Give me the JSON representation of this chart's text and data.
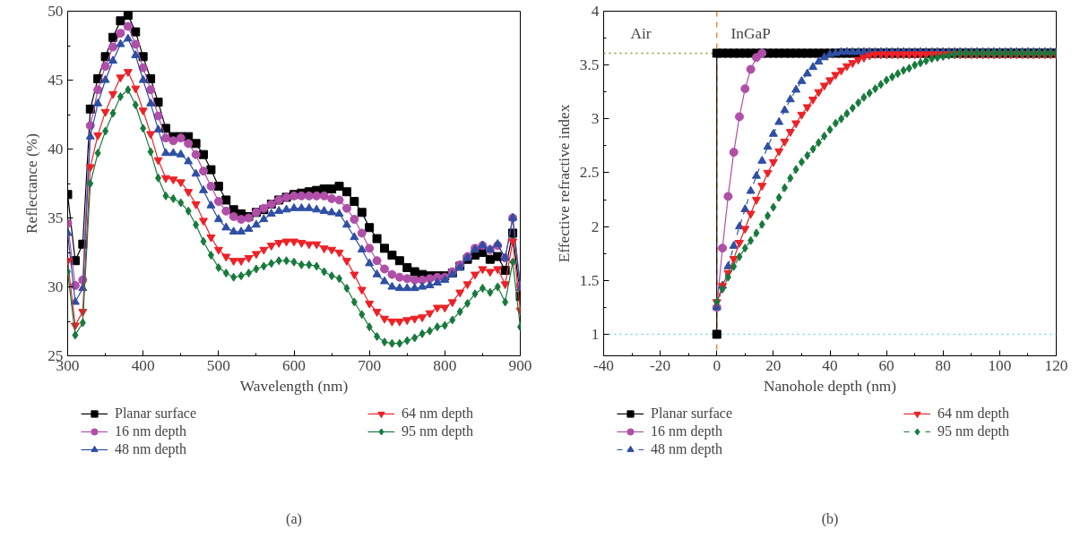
{
  "chart_data": [
    {
      "type": "line",
      "xlabel": "Wavelength (nm)",
      "ylabel": "Reflectance (%)",
      "xlim": [
        300,
        900
      ],
      "ylim": [
        25,
        50
      ],
      "xticks": [
        300,
        400,
        500,
        600,
        700,
        800,
        900
      ],
      "yticks": [
        25,
        30,
        35,
        40,
        45,
        50
      ],
      "grid": false,
      "legend": "bottom",
      "annotations": [
        "(a)"
      ],
      "x": [
        300,
        310,
        320,
        330,
        340,
        350,
        360,
        370,
        380,
        390,
        400,
        410,
        420,
        430,
        440,
        450,
        460,
        470,
        480,
        490,
        500,
        510,
        520,
        530,
        540,
        550,
        560,
        570,
        580,
        590,
        600,
        610,
        620,
        630,
        640,
        650,
        660,
        670,
        680,
        690,
        700,
        710,
        720,
        730,
        740,
        750,
        760,
        770,
        780,
        790,
        800,
        810,
        820,
        830,
        840,
        850,
        860,
        870,
        880,
        890,
        900
      ],
      "series": [
        {
          "name": "Planar surface",
          "color": "#000000",
          "marker": "square",
          "line_style": "solid",
          "values": [
            36.7,
            31.9,
            33.1,
            42.9,
            45.1,
            46.7,
            48.1,
            49.3,
            49.7,
            48.5,
            46.7,
            45.1,
            43.4,
            41.5,
            40.9,
            40.9,
            40.9,
            40.4,
            39.6,
            38.5,
            37.3,
            36.3,
            35.6,
            35.3,
            35.1,
            35.4,
            35.6,
            36.0,
            36.3,
            36.5,
            36.7,
            36.8,
            36.9,
            37.0,
            37.1,
            37.1,
            37.3,
            36.9,
            36.2,
            35.4,
            34.3,
            33.5,
            32.8,
            32.3,
            31.9,
            31.4,
            31.1,
            30.9,
            30.8,
            30.8,
            30.8,
            31.0,
            31.5,
            32.0,
            32.3,
            32.5,
            32.0,
            32.2,
            31.2,
            33.9,
            29.3
          ]
        },
        {
          "name": "16 nm depth",
          "color": "#b04fa8",
          "marker": "circle",
          "line_style": "solid",
          "values": [
            34.6,
            30.1,
            30.5,
            41.7,
            44.3,
            46.0,
            47.4,
            48.4,
            48.9,
            47.6,
            45.9,
            44.3,
            42.4,
            40.8,
            40.6,
            40.8,
            40.4,
            39.6,
            38.4,
            37.3,
            36.2,
            35.5,
            35.1,
            34.9,
            35.0,
            35.4,
            35.7,
            36.0,
            36.3,
            36.5,
            36.6,
            36.6,
            36.6,
            36.6,
            36.6,
            36.4,
            36.3,
            35.7,
            34.9,
            33.9,
            32.8,
            31.9,
            31.3,
            30.9,
            30.7,
            30.6,
            30.5,
            30.5,
            30.6,
            30.7,
            30.7,
            31.1,
            31.6,
            32.2,
            32.8,
            33.0,
            32.7,
            33.0,
            32.1,
            35.0,
            30.1
          ]
        },
        {
          "name": "48 nm depth",
          "color": "#2e4fa3",
          "marker": "triangle",
          "line_style": "solid",
          "values": [
            33.9,
            28.9,
            29.9,
            40.9,
            43.3,
            45.0,
            46.4,
            47.6,
            48.0,
            46.8,
            45.0,
            43.3,
            41.4,
            39.7,
            39.7,
            39.6,
            39.1,
            38.2,
            37.0,
            35.9,
            34.9,
            34.3,
            34.0,
            34.0,
            34.2,
            34.5,
            34.9,
            35.3,
            35.5,
            35.6,
            35.7,
            35.7,
            35.7,
            35.6,
            35.5,
            35.4,
            35.3,
            34.5,
            33.6,
            32.7,
            31.7,
            30.9,
            30.4,
            30.0,
            29.9,
            29.9,
            29.9,
            30.0,
            30.1,
            30.3,
            30.5,
            30.9,
            31.4,
            32.1,
            32.7,
            33.0,
            32.7,
            33.1,
            32.1,
            35.0,
            29.9
          ]
        },
        {
          "name": "64 nm depth",
          "color": "#ec2227",
          "marker": "triangle",
          "line_style": "solid",
          "values": [
            31.9,
            27.2,
            28.2,
            38.7,
            41.0,
            42.7,
            44.0,
            45.2,
            45.6,
            44.4,
            42.8,
            41.1,
            39.2,
            37.9,
            37.8,
            37.6,
            36.9,
            36.0,
            34.8,
            33.6,
            32.7,
            32.2,
            31.9,
            31.9,
            32.1,
            32.4,
            32.7,
            33.0,
            33.2,
            33.3,
            33.3,
            33.2,
            33.1,
            33.1,
            32.8,
            32.7,
            32.5,
            31.9,
            30.9,
            29.8,
            28.8,
            28.2,
            27.7,
            27.5,
            27.5,
            27.6,
            27.7,
            27.8,
            28.1,
            28.5,
            28.5,
            28.9,
            29.6,
            30.2,
            30.9,
            31.3,
            31.1,
            31.3,
            30.2,
            33.3,
            28.3
          ]
        },
        {
          "name": "95 nm depth",
          "color": "#177a3c",
          "marker": "diamond",
          "line_style": "solid",
          "values": [
            31.1,
            26.5,
            27.4,
            37.5,
            39.7,
            41.3,
            42.6,
            43.8,
            44.3,
            43.2,
            41.5,
            39.8,
            37.9,
            36.6,
            36.4,
            36.1,
            35.5,
            34.5,
            33.3,
            32.3,
            31.4,
            31.0,
            30.7,
            30.8,
            31.0,
            31.3,
            31.5,
            31.7,
            31.9,
            31.9,
            31.8,
            31.6,
            31.6,
            31.5,
            31.1,
            30.8,
            30.6,
            29.9,
            28.9,
            28.0,
            27.1,
            26.4,
            26.0,
            25.9,
            25.9,
            26.1,
            26.3,
            26.6,
            26.8,
            27.1,
            27.2,
            27.6,
            28.2,
            28.8,
            29.5,
            29.9,
            29.6,
            30.0,
            28.9,
            31.8,
            27.1
          ]
        }
      ]
    },
    {
      "type": "line",
      "xlabel": "Nanohole depth (nm)",
      "ylabel": "Effective refractive index",
      "xlim": [
        -40,
        120
      ],
      "ylim": [
        0.8,
        4
      ],
      "xticks": [
        -40,
        -20,
        0,
        20,
        40,
        60,
        80,
        100,
        120
      ],
      "yticks": [
        1,
        1.5,
        2,
        2.5,
        3,
        3.5,
        4
      ],
      "grid": false,
      "legend": "bottom",
      "annotations": [
        "Air",
        "InGaP",
        "(b)"
      ],
      "ref_lines": [
        {
          "axis": "x",
          "value": 0,
          "color": "#f28a30",
          "line_style": "dashed"
        },
        {
          "axis": "y",
          "value": 3.61,
          "color": "#8a9a2a",
          "line_style": "dotted"
        },
        {
          "axis": "y",
          "value": 1,
          "color": "#7fd3e0",
          "line_style": "dotted"
        }
      ],
      "x": [
        0,
        2,
        4,
        6,
        8,
        10,
        12,
        14,
        16,
        18,
        20,
        22,
        24,
        26,
        28,
        30,
        32,
        34,
        36,
        38,
        40,
        42,
        44,
        46,
        48,
        50,
        52,
        54,
        56,
        58,
        60,
        62,
        64,
        66,
        68,
        70,
        72,
        74,
        76,
        78,
        80,
        82,
        84,
        86,
        88,
        90,
        92,
        94,
        96,
        98,
        100,
        102,
        104,
        106,
        108,
        110,
        112,
        114,
        116,
        118,
        120
      ],
      "series": [
        {
          "name": "Planar surface",
          "color": "#000000",
          "marker": "square",
          "line_style": "solid",
          "x": [
            0,
            0,
            2,
            4,
            6,
            8,
            10,
            12,
            14,
            16,
            18,
            20,
            22,
            24,
            26,
            28,
            30,
            32,
            34,
            36,
            38,
            40,
            42,
            44,
            46,
            48,
            50,
            52,
            54,
            56,
            58,
            60,
            62,
            64,
            66,
            68,
            70,
            72,
            74,
            76,
            78,
            80,
            82,
            84,
            86,
            88,
            90,
            92,
            94,
            96,
            98,
            100,
            102,
            104,
            106,
            108,
            110,
            112,
            114,
            116,
            118,
            120
          ],
          "values": [
            1,
            3.61,
            3.61,
            3.61,
            3.61,
            3.61,
            3.61,
            3.61,
            3.61,
            3.61,
            3.61,
            3.61,
            3.61,
            3.61,
            3.61,
            3.61,
            3.61,
            3.61,
            3.61,
            3.61,
            3.61,
            3.61,
            3.61,
            3.61,
            3.61,
            3.61,
            3.61,
            3.61,
            3.61,
            3.61,
            3.61,
            3.61,
            3.61,
            3.61,
            3.61,
            3.61,
            3.61,
            3.61,
            3.61,
            3.61,
            3.61,
            3.61,
            3.61,
            3.61,
            3.61,
            3.61,
            3.61,
            3.61,
            3.61,
            3.61,
            3.61,
            3.61,
            3.61,
            3.61,
            3.61,
            3.61,
            3.61,
            3.61,
            3.61,
            3.61,
            3.61,
            3.61
          ]
        },
        {
          "name": "16 nm depth",
          "color": "#b04fa8",
          "marker": "circle",
          "line_style": "solid",
          "x": [
            0,
            2,
            4,
            6,
            8,
            10,
            12,
            14,
            16
          ],
          "values": [
            1.25,
            1.8,
            2.28,
            2.69,
            3.02,
            3.28,
            3.46,
            3.57,
            3.61
          ]
        },
        {
          "name": "48 nm depth",
          "color": "#2e4fa3",
          "marker": "triangle",
          "line_style": "dashed",
          "values": [
            1.25,
            1.45,
            1.63,
            1.82,
            2.0,
            2.16,
            2.33,
            2.47,
            2.61,
            2.74,
            2.86,
            2.97,
            3.08,
            3.18,
            3.27,
            3.35,
            3.42,
            3.48,
            3.53,
            3.57,
            3.6,
            3.61,
            3.62,
            3.62,
            3.62,
            3.62,
            3.62,
            3.62,
            3.62,
            3.62,
            3.62,
            3.62,
            3.62,
            3.62,
            3.62,
            3.62,
            3.62,
            3.62,
            3.62,
            3.62,
            3.62,
            3.62,
            3.62,
            3.62,
            3.62,
            3.62,
            3.62,
            3.62,
            3.62,
            3.62,
            3.62,
            3.62,
            3.62,
            3.62,
            3.62,
            3.62,
            3.62,
            3.62,
            3.62,
            3.62,
            3.62
          ]
        },
        {
          "name": "64 nm depth",
          "color": "#ec2227",
          "marker": "triangle",
          "line_style": "solid",
          "values": [
            1.3,
            1.45,
            1.57,
            1.7,
            1.85,
            1.98,
            2.12,
            2.25,
            2.38,
            2.5,
            2.6,
            2.7,
            2.79,
            2.88,
            2.96,
            3.04,
            3.11,
            3.18,
            3.25,
            3.31,
            3.36,
            3.41,
            3.45,
            3.49,
            3.52,
            3.55,
            3.57,
            3.59,
            3.6,
            3.6,
            3.6,
            3.6,
            3.6,
            3.6,
            3.6,
            3.6,
            3.6,
            3.6,
            3.6,
            3.6,
            3.6,
            3.6,
            3.6,
            3.6,
            3.6,
            3.6,
            3.6,
            3.6,
            3.6,
            3.6,
            3.6,
            3.6,
            3.6,
            3.6,
            3.6,
            3.6,
            3.6,
            3.6,
            3.6,
            3.6,
            3.6
          ]
        },
        {
          "name": "95 nm depth",
          "color": "#177a3c",
          "marker": "diamond",
          "line_style": "dashed",
          "values": [
            1.3,
            1.42,
            1.53,
            1.63,
            1.72,
            1.8,
            1.87,
            1.94,
            2.02,
            2.1,
            2.18,
            2.27,
            2.36,
            2.45,
            2.53,
            2.6,
            2.66,
            2.72,
            2.78,
            2.84,
            2.9,
            2.96,
            3.0,
            3.05,
            3.1,
            3.15,
            3.2,
            3.24,
            3.28,
            3.32,
            3.36,
            3.39,
            3.42,
            3.45,
            3.47,
            3.5,
            3.52,
            3.54,
            3.56,
            3.57,
            3.58,
            3.59,
            3.6,
            3.61,
            3.61,
            3.61,
            3.61,
            3.61,
            3.61,
            3.61,
            3.61,
            3.61,
            3.61,
            3.61,
            3.61,
            3.61,
            3.61,
            3.61,
            3.61,
            3.61,
            3.61
          ]
        }
      ]
    }
  ]
}
